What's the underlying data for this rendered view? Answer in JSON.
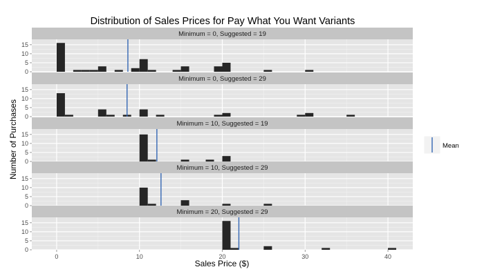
{
  "chart_data": {
    "type": "bar",
    "title": "Distribution of Sales Prices for Pay What You Want Variants",
    "xlabel": "Sales Price ($)",
    "ylabel": "Number of Purchases",
    "xlim": [
      -3,
      43
    ],
    "xticks": [
      0,
      10,
      20,
      30,
      40
    ],
    "ylim": [
      0,
      18
    ],
    "yticks": [
      0,
      5,
      10,
      15
    ],
    "bin_width": 1,
    "grid": true,
    "legend": {
      "position": "right",
      "entries": [
        {
          "label": "Mean",
          "color": "#3366b3"
        }
      ]
    },
    "colors": {
      "bar": "#262626",
      "mean_line": "#3366b3",
      "panel_bg": "#e5e5e5",
      "strip_bg": "#c4c4c4",
      "grid_major": "#ffffff",
      "grid_minor": "#f2f2f2"
    },
    "panels": [
      {
        "label": "Minimum = 0, Suggested = 19",
        "mean": 8.6,
        "bins": [
          {
            "x": 0,
            "count": 16
          },
          {
            "x": 2,
            "count": 1
          },
          {
            "x": 3,
            "count": 1
          },
          {
            "x": 4,
            "count": 1
          },
          {
            "x": 5,
            "count": 3
          },
          {
            "x": 7,
            "count": 1
          },
          {
            "x": 9,
            "count": 2
          },
          {
            "x": 10,
            "count": 7
          },
          {
            "x": 11,
            "count": 1
          },
          {
            "x": 14,
            "count": 1
          },
          {
            "x": 15,
            "count": 3
          },
          {
            "x": 19,
            "count": 3
          },
          {
            "x": 20,
            "count": 5
          },
          {
            "x": 25,
            "count": 1
          },
          {
            "x": 30,
            "count": 1
          }
        ]
      },
      {
        "label": "Minimum = 0, Suggested = 29",
        "mean": 8.5,
        "bins": [
          {
            "x": 0,
            "count": 13
          },
          {
            "x": 1,
            "count": 1
          },
          {
            "x": 5,
            "count": 4
          },
          {
            "x": 6,
            "count": 1
          },
          {
            "x": 8,
            "count": 1
          },
          {
            "x": 10,
            "count": 4
          },
          {
            "x": 12,
            "count": 1
          },
          {
            "x": 19,
            "count": 1
          },
          {
            "x": 20,
            "count": 2
          },
          {
            "x": 29,
            "count": 1
          },
          {
            "x": 30,
            "count": 2
          },
          {
            "x": 35,
            "count": 1
          }
        ]
      },
      {
        "label": "Minimum = 10, Suggested = 19",
        "mean": 12.1,
        "bins": [
          {
            "x": 10,
            "count": 15
          },
          {
            "x": 11,
            "count": 1
          },
          {
            "x": 15,
            "count": 1
          },
          {
            "x": 18,
            "count": 1
          },
          {
            "x": 20,
            "count": 3
          }
        ]
      },
      {
        "label": "Minimum = 10, Suggested = 29",
        "mean": 12.6,
        "bins": [
          {
            "x": 10,
            "count": 10
          },
          {
            "x": 11,
            "count": 1
          },
          {
            "x": 15,
            "count": 3
          },
          {
            "x": 20,
            "count": 1
          },
          {
            "x": 25,
            "count": 1
          }
        ]
      },
      {
        "label": "Minimum = 20, Suggested = 29",
        "mean": 22.0,
        "bins": [
          {
            "x": 20,
            "count": 16
          },
          {
            "x": 21,
            "count": 1
          },
          {
            "x": 25,
            "count": 2
          },
          {
            "x": 32,
            "count": 1
          },
          {
            "x": 40,
            "count": 1
          }
        ]
      }
    ]
  }
}
